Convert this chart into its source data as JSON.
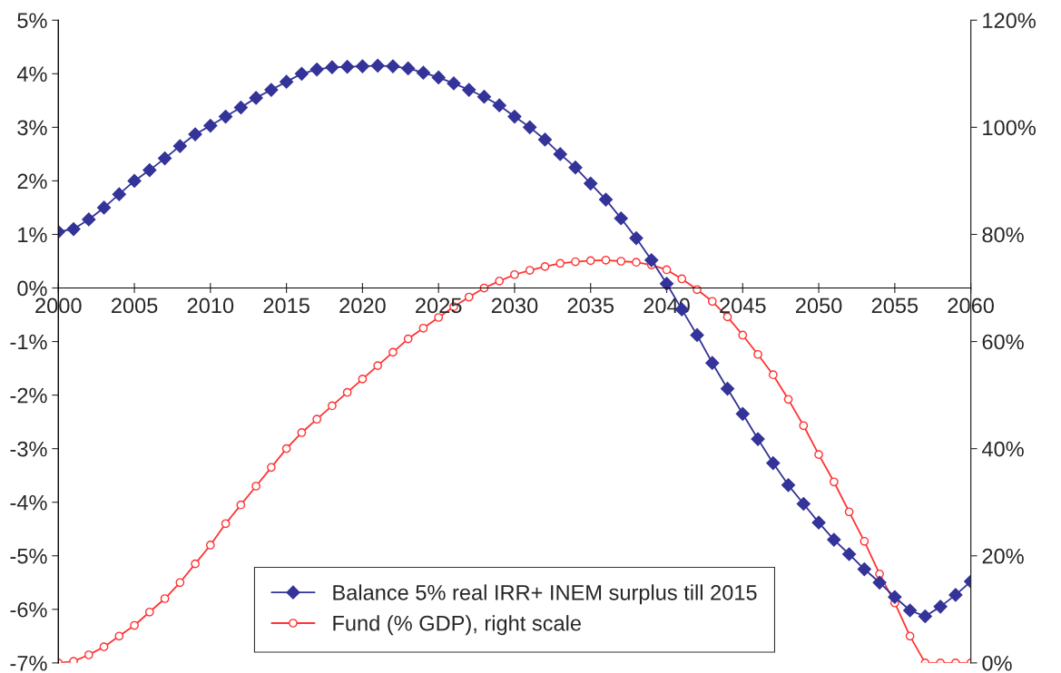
{
  "chart_data": {
    "type": "line",
    "x": [
      2000,
      2001,
      2002,
      2003,
      2004,
      2005,
      2006,
      2007,
      2008,
      2009,
      2010,
      2011,
      2012,
      2013,
      2014,
      2015,
      2016,
      2017,
      2018,
      2019,
      2020,
      2021,
      2022,
      2023,
      2024,
      2025,
      2026,
      2027,
      2028,
      2029,
      2030,
      2031,
      2032,
      2033,
      2034,
      2035,
      2036,
      2037,
      2038,
      2039,
      2040,
      2041,
      2042,
      2043,
      2044,
      2045,
      2046,
      2047,
      2048,
      2049,
      2050,
      2051,
      2052,
      2053,
      2054,
      2055,
      2056,
      2057,
      2058,
      2059,
      2060
    ],
    "series": [
      {
        "name": "Balance 5% real IRR+ INEM surplus till 2015",
        "color": "#333399",
        "marker": "diamond",
        "values": [
          1.05,
          1.1,
          1.28,
          1.5,
          1.75,
          2.0,
          2.2,
          2.42,
          2.65,
          2.87,
          3.03,
          3.2,
          3.37,
          3.55,
          3.7,
          3.85,
          4.0,
          4.08,
          4.12,
          4.13,
          4.14,
          4.15,
          4.14,
          4.1,
          4.02,
          3.93,
          3.82,
          3.7,
          3.57,
          3.41,
          3.2,
          3.0,
          2.77,
          2.5,
          2.25,
          1.95,
          1.65,
          1.3,
          0.93,
          0.52,
          0.08,
          -0.4,
          -0.88,
          -1.4,
          -1.88,
          -2.35,
          -2.82,
          -3.27,
          -3.68,
          -4.03,
          -4.38,
          -4.7,
          -4.97,
          -5.25,
          -5.5,
          -5.77,
          -6.02,
          -6.13,
          -5.95,
          -5.73,
          -5.48
        ]
      },
      {
        "name": "Fund (% GDP), right scale",
        "color": "#ff3333",
        "marker": "circle",
        "axis": "y2",
        "values": [
          0,
          0.3,
          1.5,
          3,
          5,
          7,
          9.5,
          12,
          15,
          18.5,
          22,
          26,
          29.5,
          33,
          36.5,
          40,
          43,
          45.5,
          48,
          50.5,
          53,
          55.5,
          58,
          60.5,
          62.5,
          64.5,
          66.5,
          68.3,
          70,
          71.3,
          72.5,
          73.3,
          74,
          74.6,
          74.9,
          75.1,
          75.2,
          75,
          74.8,
          74.3,
          73.4,
          71.7,
          69.7,
          67.5,
          64.6,
          61.2,
          57.6,
          53.8,
          49.2,
          44.3,
          38.9,
          33.8,
          28.2,
          22.7,
          16.6,
          11.2,
          5,
          0,
          0,
          0,
          0
        ]
      }
    ],
    "xlim": [
      2000,
      2060
    ],
    "xticks": [
      2000,
      2005,
      2010,
      2015,
      2020,
      2025,
      2030,
      2035,
      2040,
      2045,
      2050,
      2055,
      2060
    ],
    "ylim": [
      -7,
      5
    ],
    "yticks": [
      {
        "value": -7,
        "label": "-7%"
      },
      {
        "value": -6,
        "label": "-6%"
      },
      {
        "value": -5,
        "label": "-5%"
      },
      {
        "value": -4,
        "label": "-4%"
      },
      {
        "value": -3,
        "label": "-3%"
      },
      {
        "value": -2,
        "label": "-2%"
      },
      {
        "value": -1,
        "label": "-1%"
      },
      {
        "value": 0,
        "label": "0%"
      },
      {
        "value": 1,
        "label": "1%"
      },
      {
        "value": 2,
        "label": "2%"
      },
      {
        "value": 3,
        "label": "3%"
      },
      {
        "value": 4,
        "label": "4%"
      },
      {
        "value": 5,
        "label": "5%"
      }
    ],
    "y2lim": [
      0,
      120
    ],
    "y2ticks": [
      {
        "value": 0,
        "label": "0%"
      },
      {
        "value": 20,
        "label": "20%"
      },
      {
        "value": 40,
        "label": "40%"
      },
      {
        "value": 60,
        "label": "60%"
      },
      {
        "value": 80,
        "label": "80%"
      },
      {
        "value": 100,
        "label": "100%"
      },
      {
        "value": 120,
        "label": "120%"
      }
    ],
    "grid": false,
    "legend": "bottom",
    "line_style": "solid"
  }
}
